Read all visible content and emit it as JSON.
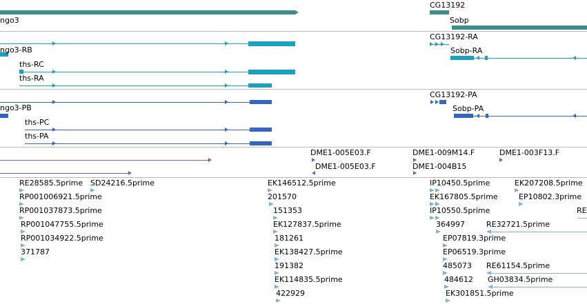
{
  "colors": {
    "gene": "#3a8f8c",
    "mrna_ra": "#19a2bf",
    "mrna_pa": "#3465c4",
    "clone": "#7a5cbf",
    "est": "#7fb1d9",
    "divider": "#b9b9b9"
  },
  "gene_track": {
    "labels": [
      "ngo3",
      "CG13192",
      "Sobp"
    ]
  },
  "mrna_track": {
    "labels": [
      "ngo3-RB",
      "ths-RC",
      "ths-RA",
      "CG13192-RA",
      "Sobp-RA"
    ]
  },
  "protein_track": {
    "labels": [
      "ngo3-PB",
      "ths-PC",
      "ths-PA",
      "CG13192-PA",
      "Sobp-PA"
    ]
  },
  "clone_track": {
    "labels": [
      "DME1-005E03.F",
      "DME1-005E03.F",
      "DME1-009M14.F",
      "DME1-004B15",
      "DME1-003F13.F"
    ]
  },
  "est_track": {
    "labels": [
      "RE28585.5prime",
      "SD24216.5prime",
      "RP001006921.5prime",
      "RP001037873.5prime",
      "RP001047755.5prime",
      "RP001034922.5prime",
      "371787",
      "EK146512.5prime",
      "201570",
      "151353",
      "EK127837.5prime",
      "181261",
      "EK138427.5prime",
      "191382",
      "EK114835.5prime",
      "422929",
      "IP10450.5prime",
      "EK207208.5prime",
      "EK167805.5prime",
      "EP10802.3prime",
      "IP10550.5prime",
      "364997",
      "RE32721.5prime",
      "RE",
      "EP07819.3prime",
      "EP06519.3prime",
      "485073",
      "RE61154.5prime",
      "484612",
      "GH03834.5prime",
      "EK301851.5prime"
    ]
  }
}
